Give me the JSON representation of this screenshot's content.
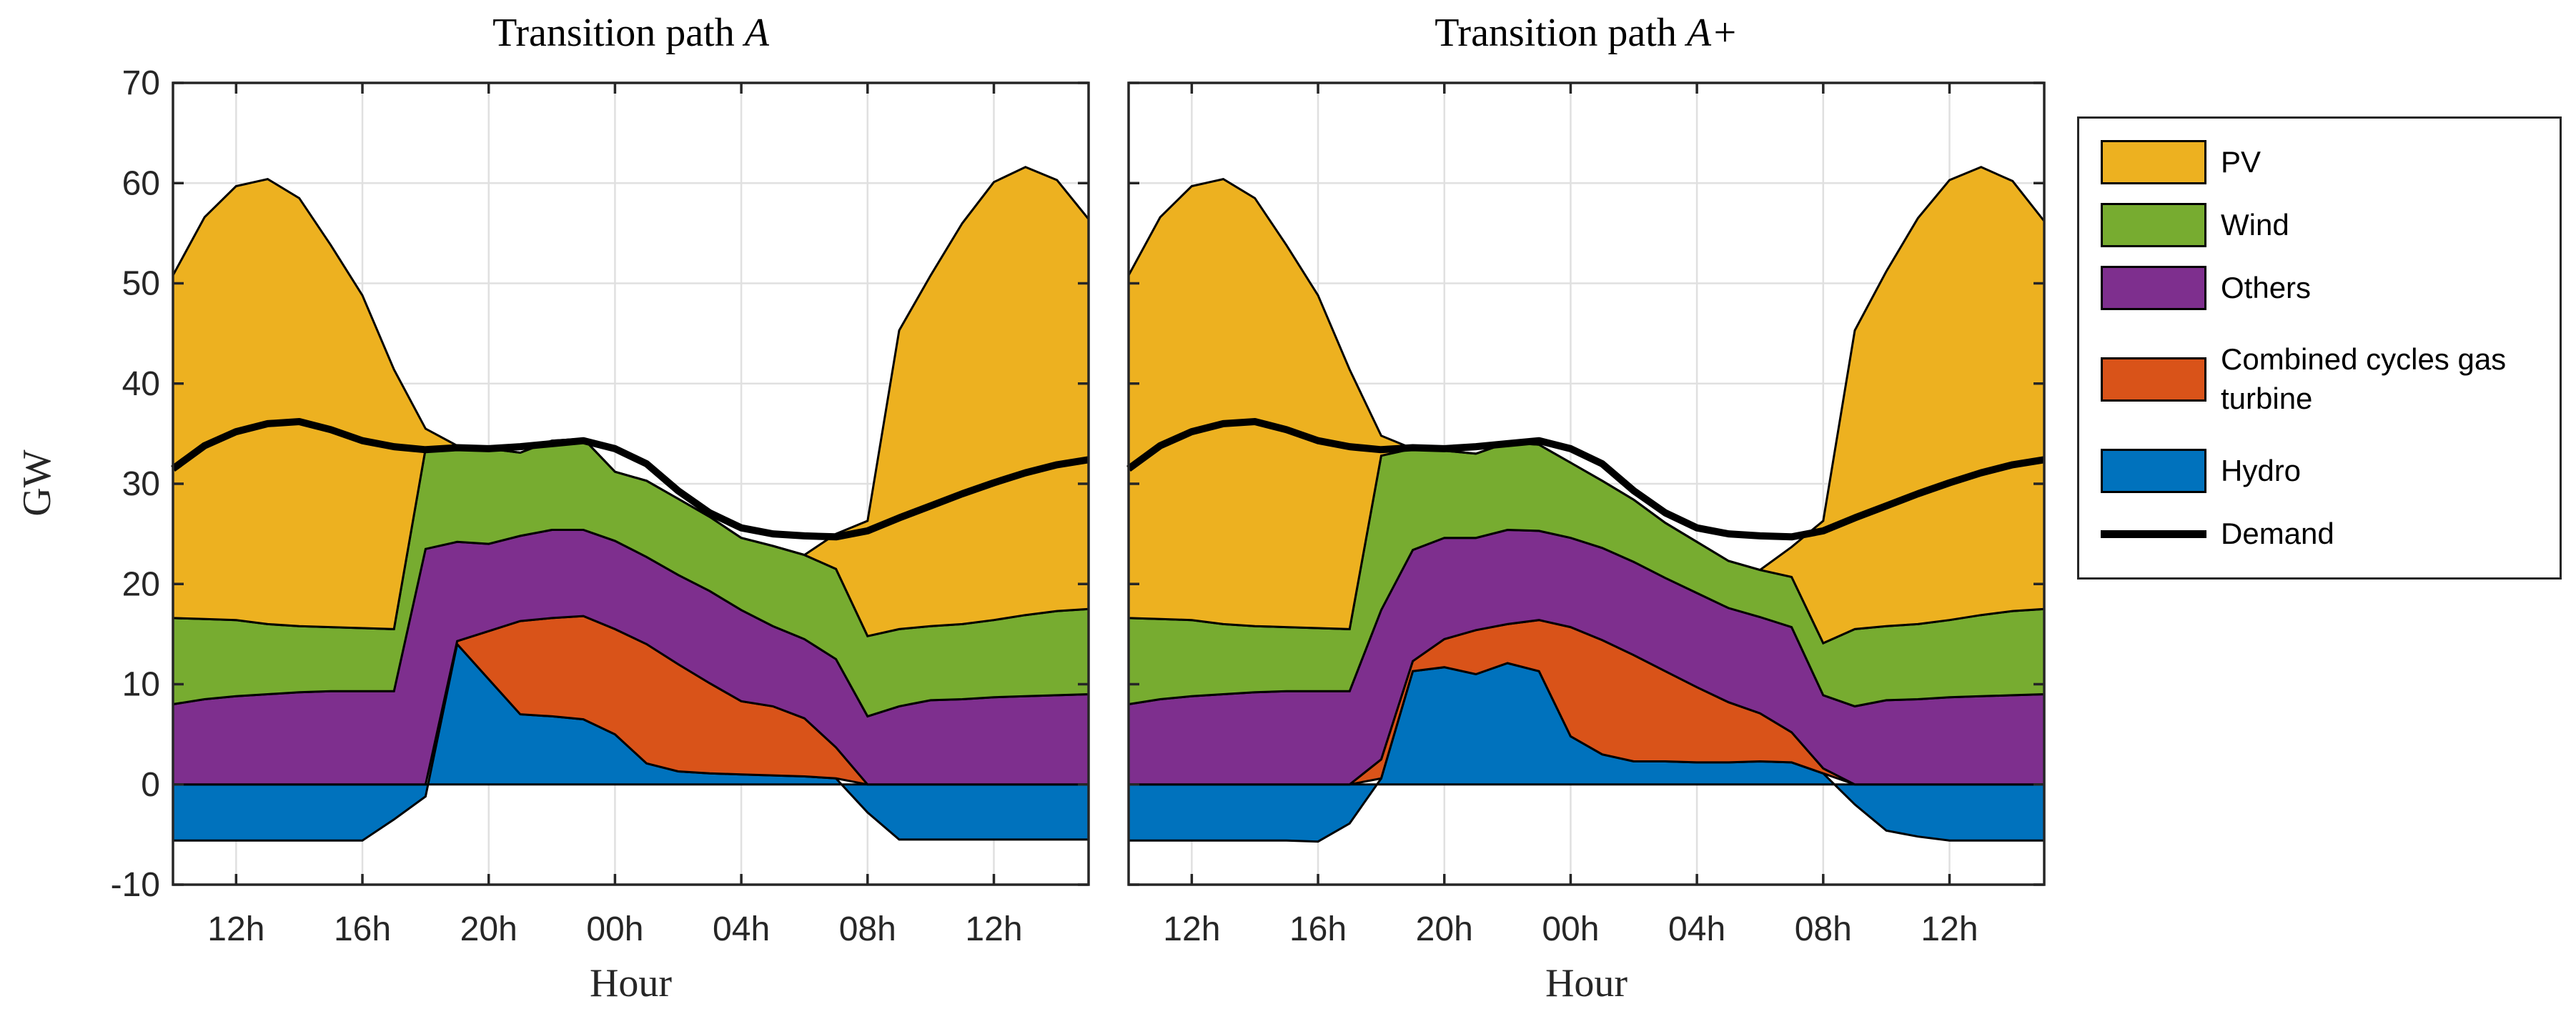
{
  "ylabel": "GW",
  "xlabel": "Hour",
  "palette": {
    "pv": "#EDB120",
    "wind": "#77AC30",
    "others": "#7E2F8E",
    "ccgt": "#D95319",
    "hydro": "#0072BD",
    "demand": "#000000",
    "grid": "#E0E0E0",
    "axis": "#262626"
  },
  "legend": {
    "items": [
      {
        "label": "PV",
        "color": "#EDB120",
        "type": "patch"
      },
      {
        "label": "Wind",
        "color": "#77AC30",
        "type": "patch"
      },
      {
        "label": "Others",
        "color": "#7E2F8E",
        "type": "patch"
      },
      {
        "label": "Combined cycles gas turbine",
        "color": "#D95319",
        "type": "patch"
      },
      {
        "label": "Hydro",
        "color": "#0072BD",
        "type": "patch"
      },
      {
        "label": "Demand",
        "color": "#000000",
        "type": "line"
      }
    ]
  },
  "chart_data": [
    {
      "type": "area",
      "title_prefix": "Transition path ",
      "title_var": "A",
      "xlabel": "Hour",
      "ylabel": "GW",
      "ylim": [
        -10,
        70
      ],
      "yticks": [
        -10,
        0,
        10,
        20,
        30,
        40,
        50,
        60,
        70
      ],
      "grid": true,
      "hours": [
        "10h",
        "11h",
        "12h",
        "13h",
        "14h",
        "15h",
        "16h",
        "17h",
        "18h",
        "19h",
        "20h",
        "21h",
        "22h",
        "23h",
        "00h",
        "01h",
        "02h",
        "03h",
        "04h",
        "05h",
        "06h",
        "07h",
        "08h",
        "09h",
        "10h",
        "11h",
        "12h",
        "13h",
        "14h",
        "15h"
      ],
      "xtick_indices": [
        2,
        6,
        10,
        14,
        18,
        22,
        26
      ],
      "xtick_labels": [
        "12h",
        "16h",
        "20h",
        "00h",
        "04h",
        "08h",
        "12h"
      ],
      "series": [
        {
          "name": "Hydro",
          "values": [
            -5.6,
            -5.6,
            -5.6,
            -5.6,
            -5.6,
            -5.6,
            -5.6,
            -3.5,
            -1.2,
            14.0,
            10.5,
            7.0,
            6.8,
            6.5,
            5.0,
            2.1,
            1.3,
            1.1,
            1.0,
            0.9,
            0.8,
            0.6,
            -2.8,
            -5.5,
            -5.5,
            -5.5,
            -5.5,
            -5.5,
            -5.5,
            -5.5
          ]
        },
        {
          "name": "Combined cycles gas turbine",
          "values": [
            0,
            0,
            0,
            0,
            0,
            0,
            0,
            0,
            0,
            0.3,
            4.8,
            9.3,
            9.8,
            10.3,
            10.5,
            11.9,
            10.7,
            9.0,
            7.3,
            6.9,
            5.8,
            3.1,
            0,
            0,
            0,
            0,
            0,
            0,
            0,
            0
          ]
        },
        {
          "name": "Others",
          "values": [
            8.0,
            8.5,
            8.8,
            9.0,
            9.2,
            9.3,
            9.3,
            9.3,
            23.5,
            9.9,
            8.7,
            8.5,
            8.8,
            8.6,
            8.8,
            8.7,
            8.9,
            9.2,
            9.1,
            8.0,
            7.9,
            8.8,
            6.8,
            7.8,
            8.4,
            8.5,
            8.7,
            8.8,
            8.9,
            9.0
          ]
        },
        {
          "name": "Wind",
          "values": [
            8.6,
            8.0,
            7.6,
            7.0,
            6.6,
            6.4,
            6.3,
            6.2,
            10.0,
            9.6,
            9.5,
            8.3,
            8.9,
            9.1,
            6.9,
            7.6,
            7.6,
            7.4,
            7.2,
            8.0,
            8.4,
            9.0,
            8.0,
            7.7,
            7.4,
            7.5,
            7.7,
            8.1,
            8.4,
            8.5
          ]
        },
        {
          "name": "PV",
          "values": [
            34.2,
            40.1,
            43.3,
            44.4,
            42.7,
            38.1,
            33.2,
            25.9,
            2.0,
            0,
            0,
            0,
            0,
            0,
            0,
            0,
            0,
            0,
            0,
            0,
            0,
            3.5,
            11.5,
            29.8,
            35.0,
            40.0,
            43.7,
            44.7,
            43.0,
            38.9
          ]
        }
      ],
      "demand": {
        "name": "Demand",
        "values": [
          31.5,
          33.8,
          35.2,
          36.0,
          36.2,
          35.4,
          34.3,
          33.7,
          33.4,
          33.6,
          33.5,
          33.7,
          34.0,
          34.3,
          33.5,
          32.0,
          29.3,
          27.1,
          25.6,
          25.0,
          24.8,
          24.7,
          25.3,
          26.6,
          27.8,
          29.0,
          30.1,
          31.1,
          31.9,
          32.4
        ]
      }
    },
    {
      "type": "area",
      "title_prefix": "Transition path ",
      "title_var": "A+",
      "xlabel": "Hour",
      "ylabel": "GW",
      "ylim": [
        -10,
        70
      ],
      "yticks": [
        -10,
        0,
        10,
        20,
        30,
        40,
        50,
        60,
        70
      ],
      "grid": true,
      "hours": [
        "10h",
        "11h",
        "12h",
        "13h",
        "14h",
        "15h",
        "16h",
        "17h",
        "18h",
        "19h",
        "20h",
        "21h",
        "22h",
        "23h",
        "00h",
        "01h",
        "02h",
        "03h",
        "04h",
        "05h",
        "06h",
        "07h",
        "08h",
        "09h",
        "10h",
        "11h",
        "12h",
        "13h",
        "14h",
        "15h"
      ],
      "xtick_indices": [
        2,
        6,
        10,
        14,
        18,
        22,
        26
      ],
      "xtick_labels": [
        "12h",
        "16h",
        "20h",
        "00h",
        "04h",
        "08h",
        "12h"
      ],
      "series": [
        {
          "name": "Hydro",
          "values": [
            -5.6,
            -5.6,
            -5.6,
            -5.6,
            -5.6,
            -5.6,
            -5.7,
            -3.9,
            0.6,
            11.3,
            11.7,
            11.0,
            12.1,
            11.3,
            4.8,
            3.0,
            2.3,
            2.3,
            2.2,
            2.2,
            2.3,
            2.2,
            1.1,
            -2.0,
            -4.6,
            -5.2,
            -5.6,
            -5.6,
            -5.6,
            -5.6
          ]
        },
        {
          "name": "Combined cycles gas turbine",
          "values": [
            0,
            0,
            0,
            0,
            0,
            0,
            0,
            0,
            1.9,
            1.0,
            2.8,
            4.4,
            3.9,
            5.1,
            10.9,
            11.4,
            10.6,
            9.0,
            7.5,
            6.0,
            4.8,
            3.0,
            0.5,
            0,
            0,
            0,
            0,
            0,
            0,
            0
          ]
        },
        {
          "name": "Others",
          "values": [
            8.0,
            8.5,
            8.8,
            9.0,
            9.2,
            9.3,
            9.3,
            9.3,
            14.9,
            11.1,
            10.1,
            9.2,
            9.4,
            8.9,
            8.9,
            9.2,
            9.3,
            9.3,
            9.4,
            9.4,
            9.6,
            10.5,
            7.3,
            7.8,
            8.4,
            8.5,
            8.7,
            8.8,
            8.9,
            9.0
          ]
        },
        {
          "name": "Wind",
          "values": [
            8.6,
            8.0,
            7.6,
            7.0,
            6.6,
            6.4,
            6.3,
            6.2,
            15.4,
            10.1,
            8.7,
            8.4,
            8.7,
            8.6,
            7.5,
            6.7,
            6.2,
            5.5,
            5.1,
            4.7,
            4.7,
            5.0,
            5.2,
            7.7,
            7.4,
            7.5,
            7.7,
            8.1,
            8.4,
            8.5
          ]
        },
        {
          "name": "PV",
          "values": [
            34.2,
            40.1,
            43.3,
            44.4,
            42.7,
            38.1,
            33.2,
            25.9,
            2.0,
            0,
            0,
            0,
            0,
            0,
            0,
            0,
            0,
            0,
            0,
            0,
            0,
            3.0,
            12.2,
            29.8,
            35.4,
            40.5,
            43.9,
            44.7,
            42.9,
            38.7
          ]
        }
      ],
      "demand": {
        "name": "Demand",
        "values": [
          31.5,
          33.8,
          35.2,
          36.0,
          36.2,
          35.4,
          34.3,
          33.7,
          33.4,
          33.6,
          33.5,
          33.7,
          34.0,
          34.3,
          33.5,
          32.0,
          29.3,
          27.1,
          25.6,
          25.0,
          24.8,
          24.7,
          25.3,
          26.6,
          27.8,
          29.0,
          30.1,
          31.1,
          31.9,
          32.4
        ]
      }
    }
  ]
}
